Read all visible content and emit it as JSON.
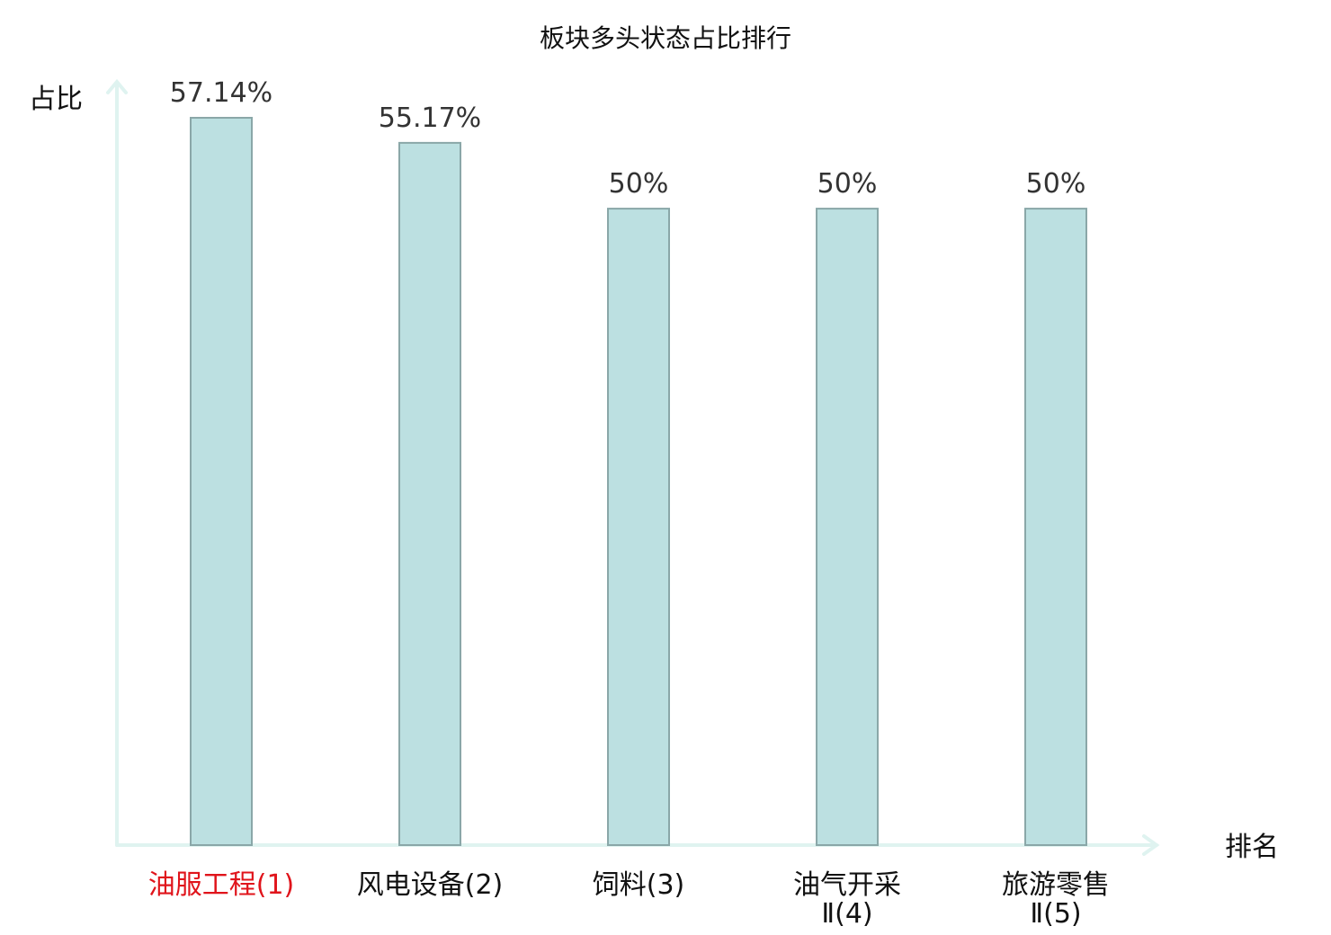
{
  "chart_data": {
    "type": "bar",
    "title": "板块多头状态占比排行",
    "ylabel": "占比",
    "xlabel": "排名",
    "categories": [
      [
        "油服工程(1)"
      ],
      [
        "风电设备(2)"
      ],
      [
        "饲料(3)"
      ],
      [
        "油气开采",
        "Ⅱ(4)"
      ],
      [
        "旅游零售",
        "Ⅱ(5)"
      ]
    ],
    "values": [
      57.14,
      55.17,
      50,
      50,
      50
    ],
    "value_labels": [
      "57.14%",
      "55.17%",
      "50%",
      "50%",
      "50%"
    ],
    "highlight_index": 0,
    "ylim": [
      0,
      57.14
    ],
    "grid": false,
    "colors": {
      "bar_fill": "#bce0e1",
      "bar_stroke": "#8aa7a8",
      "axis": "#dff3f0",
      "highlight_text": "#e0141b",
      "text": "#111111",
      "value_text": "#333333"
    }
  }
}
